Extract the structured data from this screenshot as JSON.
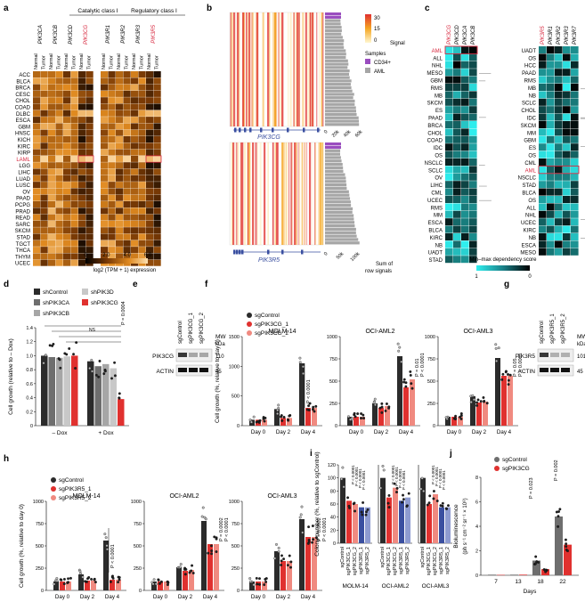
{
  "colors": {
    "red": "#e0312f",
    "lightred": "#f08a80",
    "black": "#2b2b2b",
    "dgray": "#6e6e6e",
    "lgray": "#a6a6a6",
    "blue": "#3a4fa0",
    "lblue": "#8e9bd0",
    "teal": "#39c4c9",
    "purple": "#9a4dbf",
    "aml_red": "#d7263d"
  },
  "panels": {
    "a": {
      "label": "a",
      "group_catalytic": "Catalytic class I",
      "group_regulatory": "Regulatory class I",
      "col_top_cat": [
        "PIK3CA",
        "PIK3CB",
        "PIK3CD",
        "PIK3CG"
      ],
      "col_top_reg": [
        "PIK3R1",
        "PIK3R2",
        "PIK3R3",
        "PIK3R5"
      ],
      "sub_normal": "Normal",
      "sub_tumor": "Tumor",
      "rows": [
        "ACC",
        "BLCA",
        "BRCA",
        "CESC",
        "CHOL",
        "COAD",
        "DLBC",
        "ESCA",
        "GBM",
        "HNSC",
        "KICH",
        "KIRC",
        "KIRP",
        "LAML",
        "LGG",
        "LIHC",
        "LUAD",
        "LUSC",
        "OV",
        "PAAD",
        "PCPG",
        "PRAD",
        "READ",
        "SARC",
        "SKCM",
        "STAD",
        "TGCT",
        "THCA",
        "THYM",
        "UCEC"
      ],
      "xlabel": "log2 (TPM + 1) expression",
      "scale_ticks": [
        "0",
        "2.0",
        "4.0",
        "6.0"
      ]
    },
    "b": {
      "label": "b",
      "gene1": "PIK3CG",
      "gene2": "PIK3R5",
      "legend_signal": "Signal",
      "signal_ticks": [
        "30",
        "15",
        "0"
      ],
      "legend_samples": "Samples",
      "sample_cd34": "CD34+",
      "sample_aml": "AML",
      "sum_label1": "Sum of",
      "sum_label2": "row signals",
      "ticks1": [
        "0",
        "20k",
        "40k",
        "60k"
      ],
      "ticks2": [
        "0",
        "50k",
        "100k"
      ]
    },
    "c": {
      "label": "c",
      "cols_left": [
        "PIK3CG",
        "PIK3CD",
        "PIK3CA",
        "PIK3CB"
      ],
      "cols_right": [
        "PIK3R5",
        "PIK3R1",
        "PIK3R2",
        "PIK3R3",
        "PIK3R7"
      ],
      "rows_left": [
        "AML",
        "ALL",
        "NHL",
        "MESO",
        "GBM",
        "RMS",
        "MB",
        "SKCM",
        "ES",
        "PAAD",
        "BRCA",
        "CHOL",
        "COAD",
        "IDC",
        "OS",
        "NSCLC",
        "SCLC",
        "OV",
        "LIHC",
        "CML",
        "UCEC",
        "RMS",
        "MM",
        "ESCA",
        "BLCA",
        "KIRC",
        "NB",
        "UADT",
        "STAD"
      ],
      "rows_right": [
        "UADT",
        "OS",
        "HCC",
        "PAAD",
        "RMS",
        "MB",
        "NB",
        "SCLC",
        "CHOL",
        "IDC",
        "SKCM",
        "MM",
        "GBM",
        "ES",
        "OS",
        "CML",
        "AML",
        "NSCLC",
        "STAD",
        "BLCA",
        "OS",
        "ALL",
        "NHL",
        "UCEC",
        "KIRC",
        "NB",
        "ESCA",
        "MESO"
      ],
      "legend_title": "Min–max dependency score",
      "leg_ticks": [
        "1",
        "0"
      ]
    },
    "d": {
      "label": "d",
      "legend": [
        "shControl",
        "shPIK3CA",
        "shPIK3CB",
        "shPIK3D",
        "shPIK3CG"
      ],
      "ylabel": "Cell growth (relative to – Dox)",
      "xcats": [
        "– Dox",
        "+ Dox"
      ],
      "ticks": [
        "0",
        "0.2",
        "0.4",
        "0.6",
        "0.8",
        "1.0",
        "1.2",
        "1.4"
      ],
      "ns": "NS",
      "pvals": [
        "P = 0.0004"
      ]
    },
    "e": {
      "label": "e",
      "lanes": [
        "sgControl",
        "sgPIK3CG_1",
        "sgPIK3CG_2"
      ],
      "mw": "MW",
      "mw_kda": "kDa",
      "band1": "PIK3CG",
      "band2": "ACTIN",
      "mw1": "110",
      "mw2": "45"
    },
    "f": {
      "label": "f",
      "legend": [
        "sgControl",
        "sgPIK3CG_1",
        "sgPIK3CG_2"
      ],
      "ylabel": "Cell growth (%, relative to day 0)",
      "titles": [
        "MOLM-14",
        "OCI-AML2",
        "OCI-AML3"
      ],
      "days": [
        "Day 0",
        "Day 2",
        "Day 4"
      ],
      "pvals": [
        "P < 0.0001",
        "P = 0.01",
        "P = 0.05"
      ]
    },
    "g": {
      "label": "g",
      "lanes": [
        "sgControl",
        "sgPIK3R5_1",
        "sgPIK3R5_2"
      ],
      "mw": "MW",
      "mw_kda": "kDa",
      "band1": "PIK3R5",
      "band2": "ACTIN",
      "mw1": "101",
      "mw2": "45"
    },
    "h": {
      "label": "h",
      "legend": [
        "sgControl",
        "sgPIK3R5_1",
        "sgPIK3R5_2"
      ],
      "ylabel": "Cell growth (%, relative to day 0)",
      "titles": [
        "MOLM-14",
        "OCI-AML2",
        "OCI-AML3"
      ],
      "days": [
        "Day 0",
        "Day 2",
        "Day 4"
      ],
      "pvals": [
        "P < 0.0001",
        "P = 0.0002"
      ]
    },
    "i": {
      "label": "i",
      "ylabel": "Colony number (%, relative to sgControl)",
      "titles": [
        "MOLM-14",
        "OCI-AML2",
        "OCI-AML3"
      ],
      "xlabels": [
        "sgControl",
        "sgPIK3CG_1",
        "sgPIK3CG_2",
        "sgPIK3R5_1",
        "sgPIK3R5_2"
      ],
      "pvals": [
        "P < 0.0001"
      ]
    },
    "j": {
      "label": "j",
      "legend": [
        "sgControl",
        "sgPIK3CG"
      ],
      "ylabel": "Bioluminescence",
      "ylabel2": "(ph s⁻¹ cm⁻² sr⁻¹ × 10⁸)",
      "xlabel": "Days",
      "days": [
        "7",
        "13",
        "18",
        "22"
      ],
      "ticks": [
        "0",
        "2",
        "4",
        "6",
        "8"
      ],
      "pvals": [
        "P = 0.023",
        "P = 0.002"
      ]
    }
  },
  "chart_data": [
    {
      "type": "heatmap",
      "panel": "a",
      "title": "log2 (TPM + 1) expression of class I PI3K genes",
      "note": "AML (LAML) row highlighted"
    },
    {
      "type": "heatmap",
      "panel": "c",
      "title": "Min–max dependency score by cancer type"
    },
    {
      "type": "bar",
      "panel": "d",
      "categories": [
        "– Dox",
        "+ Dox"
      ],
      "ylim": [
        0,
        1.4
      ],
      "series": [
        {
          "name": "shControl",
          "values": [
            1.0,
            0.92
          ]
        },
        {
          "name": "shPIK3CA",
          "values": [
            0.98,
            0.85
          ]
        },
        {
          "name": "shPIK3CB",
          "values": [
            0.97,
            0.88
          ]
        },
        {
          "name": "shPIK3D",
          "values": [
            0.99,
            0.82
          ]
        },
        {
          "name": "shPIK3CG",
          "values": [
            1.0,
            0.38
          ]
        }
      ]
    },
    {
      "type": "bar",
      "panel": "f",
      "subplots": [
        {
          "title": "MOLM-14",
          "ylim": [
            0,
            1500
          ],
          "categories": [
            "Day 0",
            "Day 2",
            "Day 4"
          ],
          "series": [
            {
              "name": "sgControl",
              "values": [
                100,
                280,
                1050
              ]
            },
            {
              "name": "sgPIK3CG_1",
              "values": [
                100,
                130,
                300
              ]
            },
            {
              "name": "sgPIK3CG_2",
              "values": [
                100,
                130,
                300
              ]
            }
          ]
        },
        {
          "title": "OCI-AML2",
          "ylim": [
            0,
            1000
          ],
          "categories": [
            "Day 0",
            "Day 2",
            "Day 4"
          ],
          "series": [
            {
              "name": "sgControl",
              "values": [
                100,
                250,
                780
              ]
            },
            {
              "name": "sgPIK3CG_1",
              "values": [
                100,
                200,
                430
              ]
            },
            {
              "name": "sgPIK3CG_2",
              "values": [
                100,
                220,
                520
              ]
            }
          ]
        },
        {
          "title": "OCI-AML3",
          "ylim": [
            0,
            1000
          ],
          "categories": [
            "Day 0",
            "Day 2",
            "Day 4"
          ],
          "series": [
            {
              "name": "sgControl",
              "values": [
                100,
                330,
                760
              ]
            },
            {
              "name": "sgPIK3CG_1",
              "values": [
                100,
                260,
                560
              ]
            },
            {
              "name": "sgPIK3CG_2",
              "values": [
                100,
                270,
                560
              ]
            }
          ]
        }
      ]
    },
    {
      "type": "bar",
      "panel": "h",
      "subplots": [
        {
          "title": "MOLM-14",
          "ylim": [
            0,
            1000
          ],
          "categories": [
            "Day 0",
            "Day 2",
            "Day 4"
          ],
          "series": [
            {
              "name": "sgControl",
              "values": [
                100,
                180,
                560
              ]
            },
            {
              "name": "sgPIK3R5_1",
              "values": [
                100,
                110,
                120
              ]
            },
            {
              "name": "sgPIK3R5_2",
              "values": [
                100,
                110,
                120
              ]
            }
          ]
        },
        {
          "title": "OCI-AML2",
          "ylim": [
            0,
            1000
          ],
          "categories": [
            "Day 0",
            "Day 2",
            "Day 4"
          ],
          "series": [
            {
              "name": "sgControl",
              "values": [
                100,
                260,
                780
              ]
            },
            {
              "name": "sgPIK3R5_1",
              "values": [
                100,
                220,
                520
              ]
            },
            {
              "name": "sgPIK3R5_2",
              "values": [
                100,
                230,
                520
              ]
            }
          ]
        },
        {
          "title": "OCI-AML3",
          "ylim": [
            0,
            1000
          ],
          "categories": [
            "Day 0",
            "Day 2",
            "Day 4"
          ],
          "series": [
            {
              "name": "sgControl",
              "values": [
                100,
                440,
                800
              ]
            },
            {
              "name": "sgPIK3R5_1",
              "values": [
                100,
                330,
                600
              ]
            },
            {
              "name": "sgPIK3R5_2",
              "values": [
                100,
                330,
                600
              ]
            }
          ]
        }
      ]
    },
    {
      "type": "bar",
      "panel": "i",
      "ylim": [
        0,
        120
      ],
      "categories": [
        "sgControl",
        "sgPIK3CG_1",
        "sgPIK3CG_2",
        "sgPIK3R5_1",
        "sgPIK3R5_2"
      ],
      "series": [
        {
          "name": "MOLM-14",
          "values": [
            100,
            65,
            60,
            55,
            55
          ]
        },
        {
          "name": "OCI-AML2",
          "values": [
            100,
            70,
            85,
            65,
            70
          ]
        },
        {
          "name": "OCI-AML3",
          "values": [
            100,
            60,
            75,
            55,
            55
          ]
        }
      ]
    },
    {
      "type": "bar",
      "panel": "j",
      "xlabel": "Days",
      "ylim": [
        0,
        8
      ],
      "categories": [
        "7",
        "13",
        "18",
        "22"
      ],
      "series": [
        {
          "name": "sgControl",
          "values": [
            0.05,
            0.05,
            1.2,
            4.8
          ]
        },
        {
          "name": "sgPIK3CG",
          "values": [
            0.03,
            0.05,
            0.5,
            2.5
          ]
        }
      ]
    }
  ]
}
